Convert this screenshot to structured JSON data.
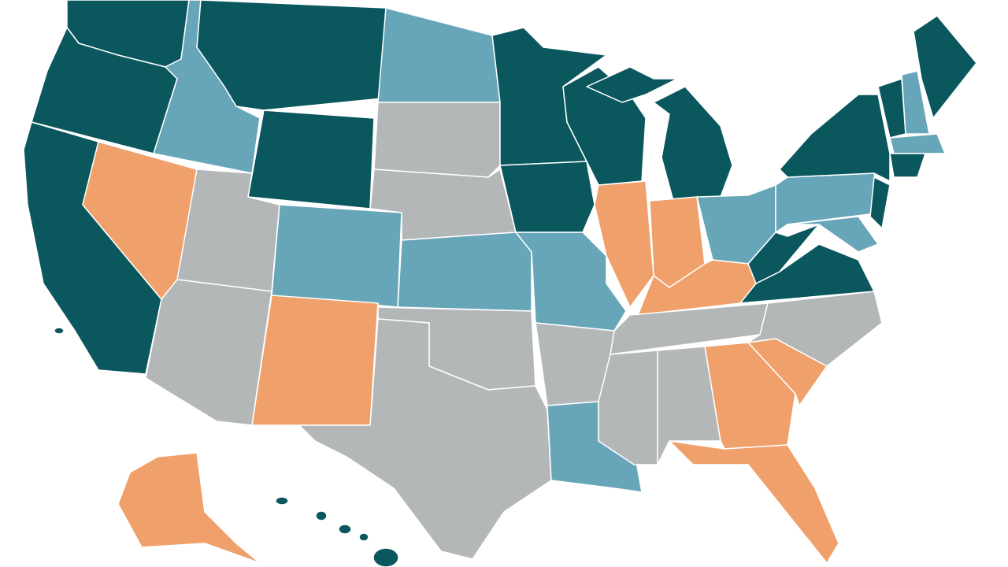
{
  "map": {
    "palette": [
      "#0b575e",
      "#67a5b9",
      "#f0a06a",
      "#b4b7b8"
    ]
  }
}
